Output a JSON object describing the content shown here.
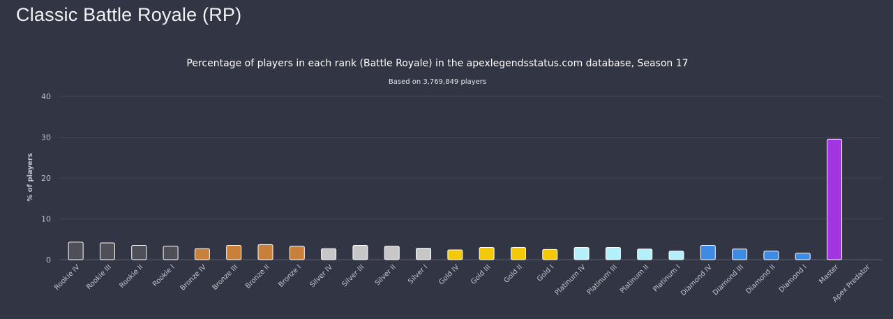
{
  "page": {
    "title": "Classic Battle Royale (RP)"
  },
  "chart_data": {
    "type": "bar",
    "title": "Percentage of players in each rank (Battle Royale) in the apexlegendsstatus.com database, Season 17",
    "subtitle": "Based on 3,769,849 players",
    "ylabel": "% of players",
    "xlabel": "",
    "ylim": [
      0,
      40
    ],
    "yticks": [
      0,
      10,
      20,
      30,
      40
    ],
    "grid": true,
    "categories": [
      "Rookie IV",
      "Rookie III",
      "Rookie II",
      "Rookie I",
      "Bronze IV",
      "Bronze III",
      "Bronze II",
      "Bronze I",
      "Silver IV",
      "Silver III",
      "Silver II",
      "Silver I",
      "Gold IV",
      "Gold III",
      "Gold II",
      "Gold I",
      "Platinum IV",
      "Platinum III",
      "Platinum II",
      "Platinum I",
      "Diamond IV",
      "Diamond III",
      "Diamond II",
      "Diamond I",
      "Master",
      "Apex Predator"
    ],
    "values": [
      4.3,
      4.1,
      3.5,
      3.3,
      2.7,
      3.5,
      3.7,
      3.3,
      2.7,
      3.5,
      3.3,
      2.8,
      2.4,
      3.0,
      3.0,
      2.5,
      3.0,
      3.0,
      2.6,
      2.1,
      3.5,
      2.6,
      2.1,
      1.6,
      29.5,
      0.0
    ],
    "colors": [
      "#4f4f59",
      "#4f4f59",
      "#4f4f59",
      "#4f4f59",
      "#c9803a",
      "#c9803a",
      "#c9803a",
      "#c9803a",
      "#c7c7c7",
      "#c7c7c7",
      "#c7c7c7",
      "#c7c7c7",
      "#f6c906",
      "#f6c906",
      "#f6c906",
      "#f6c906",
      "#b4f0fb",
      "#b4f0fb",
      "#b4f0fb",
      "#b4f0fb",
      "#3f8ae2",
      "#3f8ae2",
      "#3f8ae2",
      "#3f8ae2",
      "#a235df",
      "#d2315a"
    ]
  }
}
